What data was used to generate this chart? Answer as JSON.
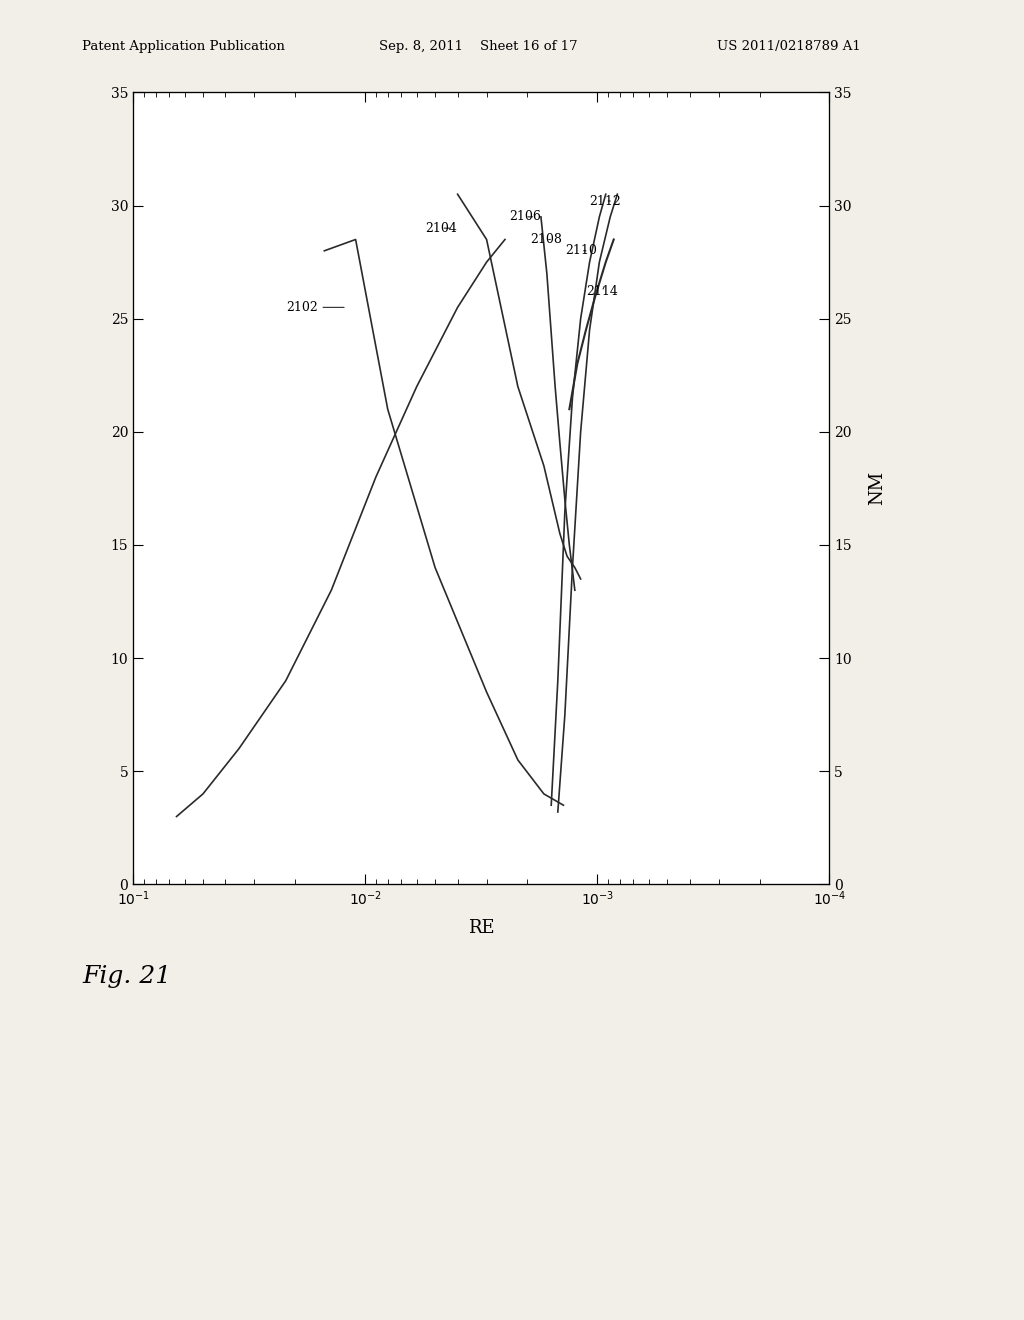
{
  "header_left": "Patent Application Publication",
  "header_mid": "Sep. 8, 2011    Sheet 16 of 17",
  "header_right": "US 2011/0218789 A1",
  "fig_label": "Fig. 21",
  "xlabel": "RE",
  "ylabel": "NM",
  "xlim_left": 0.1,
  "xlim_right": 0.0001,
  "ylim": [
    0,
    35
  ],
  "yticks": [
    0,
    5,
    10,
    15,
    20,
    25,
    30,
    35
  ],
  "bg_color": "#f2efe8",
  "plot_bg": "#ffffff",
  "line_color": "#2a2a2a",
  "curve2102_x": [
    0.065,
    0.05,
    0.035,
    0.022,
    0.014,
    0.009,
    0.006,
    0.004,
    0.003,
    0.0025
  ],
  "curve2102_y": [
    3.0,
    4.0,
    6.0,
    9.0,
    13.0,
    18.0,
    22.0,
    25.5,
    27.5,
    28.5
  ],
  "curve2104_x": [
    0.015,
    0.011,
    0.008,
    0.005,
    0.003,
    0.0022,
    0.0017,
    0.0014
  ],
  "curve2104_y": [
    28.0,
    28.5,
    21.0,
    14.0,
    8.5,
    5.5,
    4.0,
    3.5
  ],
  "curve2106_x": [
    0.004,
    0.003,
    0.0022,
    0.0017,
    0.00145,
    0.00135,
    0.00125,
    0.00118
  ],
  "curve2106_y": [
    30.5,
    28.5,
    22.0,
    18.5,
    15.5,
    14.5,
    14.0,
    13.5
  ],
  "curve2108_x": [
    0.00175,
    0.00165,
    0.00152,
    0.00145,
    0.00138,
    0.00132,
    0.00125
  ],
  "curve2108_y": [
    29.5,
    27.0,
    22.0,
    19.5,
    17.0,
    15.0,
    13.0
  ],
  "curve2110_x": [
    0.00092,
    0.00098,
    0.00108,
    0.00118,
    0.00128,
    0.00138,
    0.00148,
    0.00158
  ],
  "curve2110_y": [
    30.5,
    29.5,
    27.5,
    25.0,
    21.5,
    16.5,
    9.0,
    3.5
  ],
  "curve2112_x": [
    0.00082,
    0.00088,
    0.00098,
    0.00108,
    0.00118,
    0.00128,
    0.00138,
    0.00148
  ],
  "curve2112_y": [
    30.5,
    29.5,
    27.5,
    24.5,
    20.0,
    14.0,
    7.5,
    3.2
  ],
  "curve2114_x": [
    0.00085,
    0.00092,
    0.00102,
    0.00112,
    0.00122,
    0.00132
  ],
  "curve2114_y": [
    28.5,
    27.5,
    26.0,
    24.5,
    23.0,
    21.0
  ]
}
